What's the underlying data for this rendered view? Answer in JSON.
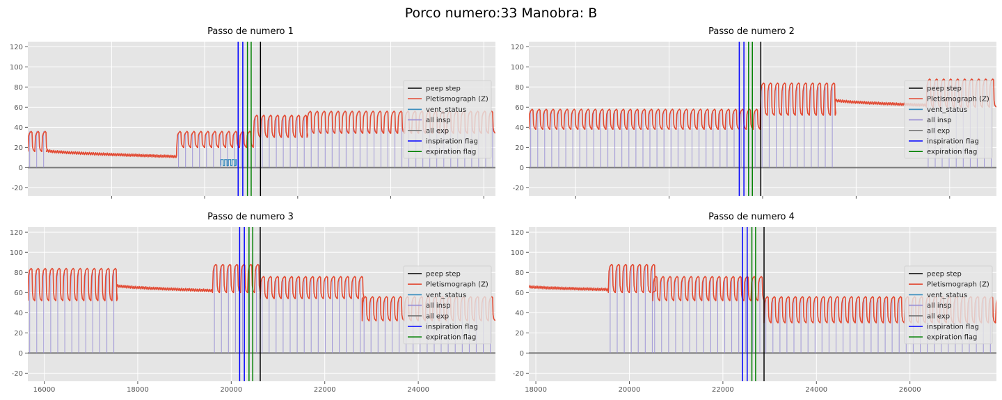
{
  "figure": {
    "title": "Porco numero:33 Manobra: B"
  },
  "legend_entries": [
    {
      "label": "peep step",
      "color": "#000000"
    },
    {
      "label": "Pletismograph (Z)",
      "color": "#E24A33"
    },
    {
      "label": "vent_status",
      "color": "#348ABD"
    },
    {
      "label": "all insp",
      "color": "#988ED5"
    },
    {
      "label": "all exp",
      "color": "#777777"
    },
    {
      "label": "inspiration flag",
      "color": "#0000ff"
    },
    {
      "label": "expiration flag",
      "color": "#008000"
    }
  ],
  "chart_data": [
    {
      "type": "line",
      "title": "Passo de numero 1",
      "xlim": [
        4200,
        14250
      ],
      "ylim": [
        -28,
        125
      ],
      "xticks": [
        6000,
        8000,
        10000,
        12000,
        14000
      ],
      "yticks": [
        -20,
        0,
        20,
        40,
        60,
        80,
        100,
        120
      ],
      "grid": true,
      "legend_position": "right",
      "peep_step": [
        9200
      ],
      "inspiration_flags": [
        8720,
        8820
      ],
      "expiration_flags": [
        8920,
        9000
      ],
      "series": [
        {
          "name": "Pletismograph (Z)",
          "segments": [
            {
              "type": "breath",
              "x_start": 4200,
              "x_end": 4600,
              "low": 16,
              "high": 36
            },
            {
              "type": "decay",
              "x_start": 4600,
              "x_end": 7400,
              "y_start": 17,
              "y_end": 11
            },
            {
              "type": "breath",
              "x_start": 7400,
              "x_end": 9050,
              "low": 20,
              "high": 36
            },
            {
              "type": "breath",
              "x_start": 9050,
              "x_end": 10200,
              "low": 30,
              "high": 52
            },
            {
              "type": "breath",
              "x_start": 10200,
              "x_end": 14250,
              "low": 34,
              "high": 56
            }
          ]
        },
        {
          "name": "all insp",
          "markers": [
            {
              "x_start": 4200,
              "x_end": 4600,
              "height": 36
            },
            {
              "x_start": 7400,
              "x_end": 9050,
              "height": 34
            },
            {
              "x_start": 9050,
              "x_end": 14250,
              "height": 50
            }
          ]
        },
        {
          "name": "vent_status",
          "steps": {
            "x_start": 8350,
            "x_end": 8680,
            "low": 2,
            "high": 8
          }
        }
      ]
    },
    {
      "type": "line",
      "title": "Passo de numero 2",
      "xlim": [
        11000,
        21000
      ],
      "ylim": [
        -28,
        125
      ],
      "xticks": [
        12000,
        14000,
        16000,
        18000,
        20000
      ],
      "yticks": [
        -20,
        0,
        20,
        40,
        60,
        80,
        100,
        120
      ],
      "grid": true,
      "legend_position": "right",
      "peep_step": [
        15960
      ],
      "inspiration_flags": [
        15500,
        15600
      ],
      "expiration_flags": [
        15700,
        15780
      ],
      "series": [
        {
          "name": "Pletismograph (Z)",
          "segments": [
            {
              "type": "breath",
              "x_start": 11000,
              "x_end": 15950,
              "low": 38,
              "high": 58
            },
            {
              "type": "breath",
              "x_start": 15950,
              "x_end": 17550,
              "low": 52,
              "high": 84
            },
            {
              "type": "decay",
              "x_start": 17550,
              "x_end": 19500,
              "y_start": 67,
              "y_end": 62
            },
            {
              "type": "breath",
              "x_start": 19500,
              "x_end": 21000,
              "low": 60,
              "high": 88
            }
          ]
        },
        {
          "name": "all insp",
          "markers": [
            {
              "x_start": 11000,
              "x_end": 15950,
              "height": 55
            },
            {
              "x_start": 15950,
              "x_end": 17550,
              "height": 80
            },
            {
              "x_start": 19500,
              "x_end": 21000,
              "height": 85
            }
          ]
        }
      ]
    },
    {
      "type": "line",
      "title": "Passo de numero 3",
      "xlim": [
        15650,
        25650
      ],
      "ylim": [
        -28,
        125
      ],
      "xticks": [
        16000,
        18000,
        20000,
        22000,
        24000
      ],
      "yticks": [
        -20,
        0,
        20,
        40,
        60,
        80,
        100,
        120
      ],
      "grid": true,
      "legend_position": "right",
      "peep_step": [
        20620
      ],
      "inspiration_flags": [
        20180,
        20280
      ],
      "expiration_flags": [
        20380,
        20460
      ],
      "series": [
        {
          "name": "Pletismograph (Z)",
          "segments": [
            {
              "type": "breath",
              "x_start": 15650,
              "x_end": 17550,
              "low": 52,
              "high": 84
            },
            {
              "type": "decay",
              "x_start": 17550,
              "x_end": 19600,
              "y_start": 67,
              "y_end": 62
            },
            {
              "type": "breath",
              "x_start": 19600,
              "x_end": 20620,
              "low": 60,
              "high": 88
            },
            {
              "type": "breath",
              "x_start": 20620,
              "x_end": 22800,
              "low": 54,
              "high": 76
            },
            {
              "type": "breath",
              "x_start": 22800,
              "x_end": 25650,
              "low": 32,
              "high": 56
            }
          ]
        },
        {
          "name": "all insp",
          "markers": [
            {
              "x_start": 15650,
              "x_end": 17550,
              "height": 80
            },
            {
              "x_start": 19600,
              "x_end": 20620,
              "height": 85
            },
            {
              "x_start": 20620,
              "x_end": 22800,
              "height": 73
            },
            {
              "x_start": 22800,
              "x_end": 25650,
              "height": 53
            }
          ]
        }
      ]
    },
    {
      "type": "line",
      "title": "Passo de numero 4",
      "xlim": [
        17850,
        27850
      ],
      "ylim": [
        -28,
        125
      ],
      "xticks": [
        18000,
        20000,
        22000,
        24000,
        26000
      ],
      "yticks": [
        -20,
        0,
        20,
        40,
        60,
        80,
        100,
        120
      ],
      "grid": true,
      "legend_position": "right",
      "peep_step": [
        22880
      ],
      "inspiration_flags": [
        22420,
        22520
      ],
      "expiration_flags": [
        22620,
        22700
      ],
      "series": [
        {
          "name": "Pletismograph (Z)",
          "segments": [
            {
              "type": "decay",
              "x_start": 17850,
              "x_end": 19550,
              "y_start": 66,
              "y_end": 63
            },
            {
              "type": "breath",
              "x_start": 19550,
              "x_end": 20500,
              "low": 60,
              "high": 88
            },
            {
              "type": "breath",
              "x_start": 20500,
              "x_end": 22880,
              "low": 52,
              "high": 76
            },
            {
              "type": "breath",
              "x_start": 22880,
              "x_end": 27850,
              "low": 30,
              "high": 56
            }
          ]
        },
        {
          "name": "all insp",
          "markers": [
            {
              "x_start": 19550,
              "x_end": 20500,
              "height": 85
            },
            {
              "x_start": 20500,
              "x_end": 22880,
              "height": 73
            },
            {
              "x_start": 22880,
              "x_end": 27850,
              "height": 53
            }
          ]
        }
      ]
    }
  ]
}
